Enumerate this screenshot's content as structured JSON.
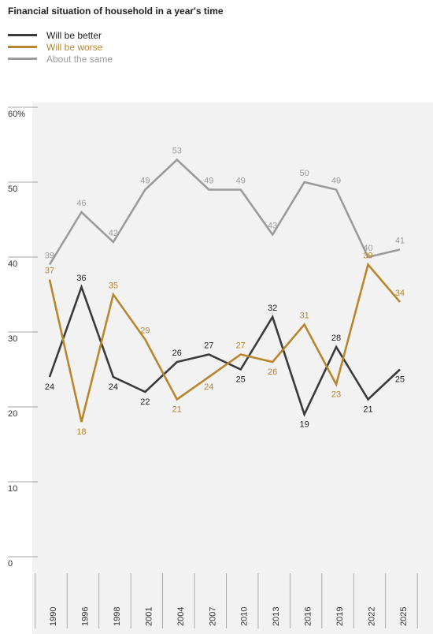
{
  "title": "Financial situation of household in a year's time",
  "chart_data": {
    "type": "line",
    "x": [
      "1990",
      "1996",
      "1998",
      "2001",
      "2004",
      "2007",
      "2010",
      "2013",
      "2016",
      "2019",
      "2022",
      "2025"
    ],
    "series": [
      {
        "name": "Will be better",
        "color": "#3a3a3a",
        "values": [
          24,
          36,
          24,
          22,
          26,
          27,
          25,
          32,
          19,
          28,
          21,
          25
        ]
      },
      {
        "name": "Will be worse",
        "color": "#b8862f",
        "values": [
          37,
          18,
          35,
          29,
          21,
          24,
          27,
          26,
          31,
          23,
          39,
          34
        ]
      },
      {
        "name": "About the same",
        "color": "#9b9b9b",
        "values": [
          39,
          46,
          42,
          49,
          53,
          49,
          49,
          43,
          50,
          49,
          40,
          41
        ]
      }
    ],
    "y_ticks": [
      "60%",
      "50",
      "40",
      "30",
      "20",
      "10",
      "0"
    ],
    "ylim": [
      0,
      60
    ],
    "legend_position": "top-left",
    "grid": false,
    "background": "#f2f2f2"
  }
}
